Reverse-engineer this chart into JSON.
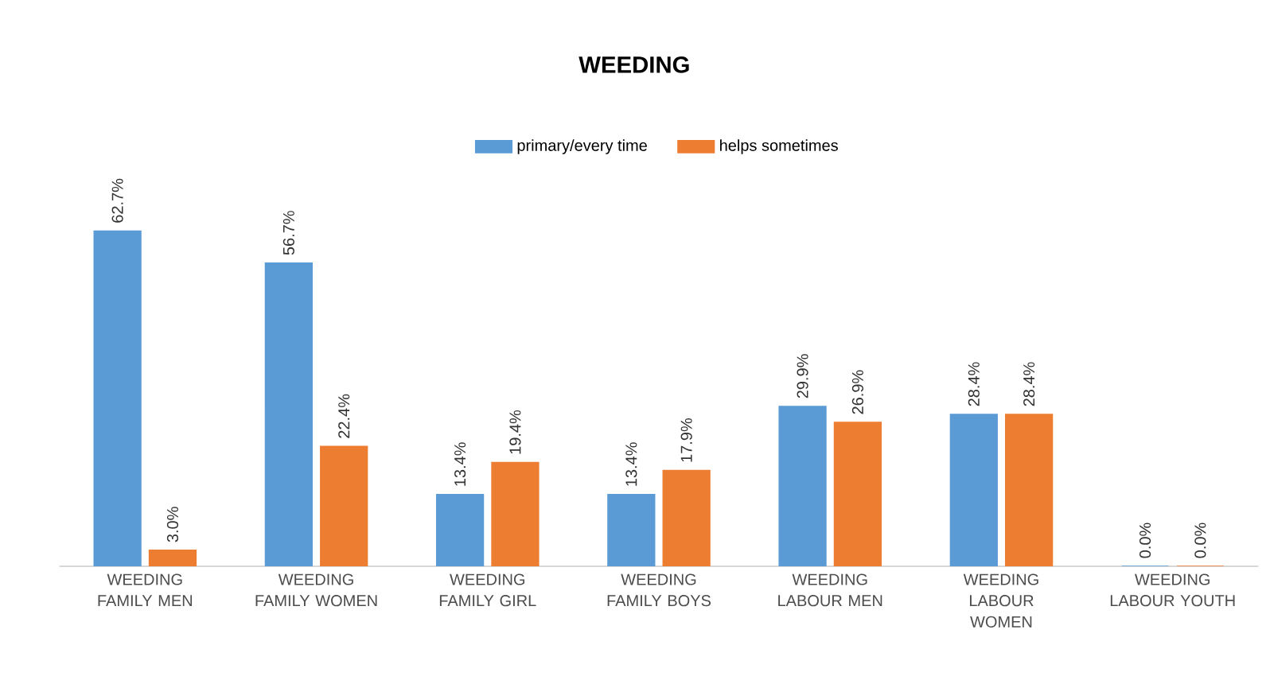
{
  "chart_data": {
    "type": "bar",
    "title": "WEEDING",
    "legend": "top",
    "categories": [
      "WEEDING FAMILY MEN",
      "WEEDING FAMILY WOMEN",
      "WEEDING FAMILY GIRL",
      "WEEDING FAMILY BOYS",
      "WEEDING LABOUR MEN",
      "WEEDING LABOUR WOMEN",
      "WEEDING LABOUR YOUTH"
    ],
    "series": [
      {
        "name": "primary/every time",
        "color": "#5b9bd5",
        "values": [
          62.7,
          56.7,
          13.4,
          13.4,
          29.9,
          28.4,
          0.0
        ],
        "value_labels": [
          "62.7%",
          "56.7%",
          "13.4%",
          "13.4%",
          "29.9%",
          "28.4%",
          "0.0%"
        ]
      },
      {
        "name": "helps sometimes",
        "color": "#ed7d31",
        "values": [
          3.0,
          22.4,
          19.4,
          17.9,
          26.9,
          28.4,
          0.0
        ],
        "value_labels": [
          "3.0%",
          "22.4%",
          "19.4%",
          "17.9%",
          "26.9%",
          "28.4%",
          "0.0%"
        ]
      }
    ]
  }
}
